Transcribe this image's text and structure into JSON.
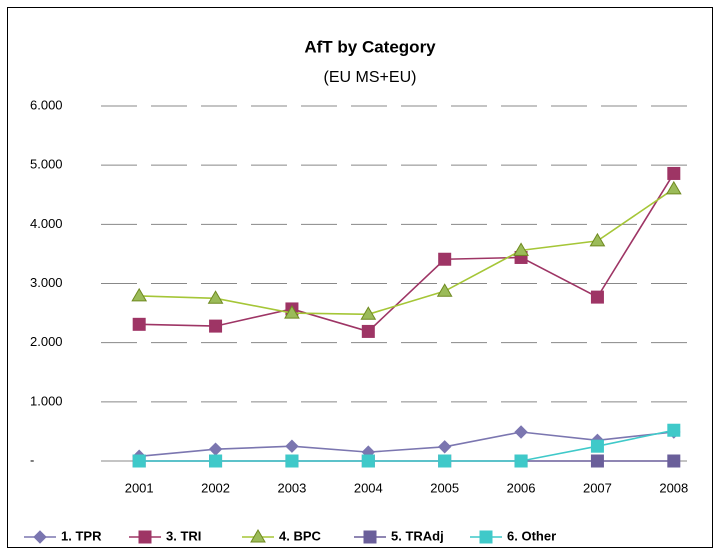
{
  "chart_data": {
    "type": "line",
    "title": "AfT by Category",
    "subtitle": "(EU MS+EU)",
    "categories": [
      "2001",
      "2002",
      "2003",
      "2004",
      "2005",
      "2006",
      "2007",
      "2008"
    ],
    "series": [
      {
        "name": "1. TPR",
        "color": "#7b76b0",
        "marker": "diamond",
        "values": [
          80,
          200,
          250,
          150,
          240,
          490,
          350,
          490
        ]
      },
      {
        "name": "3. TRI",
        "color": "#9e3565",
        "marker": "square",
        "values": [
          2310,
          2280,
          2570,
          2190,
          3410,
          3440,
          2770,
          4860
        ]
      },
      {
        "name": "4. BPC",
        "color": "#a5c637",
        "marker": "triangle",
        "values": [
          2790,
          2750,
          2500,
          2480,
          2870,
          3560,
          3720,
          4600
        ]
      },
      {
        "name": "5. TRAdj",
        "color": "#6a5f9a",
        "marker": "square",
        "values": [
          0,
          0,
          0,
          0,
          0,
          0,
          0,
          0
        ]
      },
      {
        "name": "6. Other",
        "color": "#3fc9c9",
        "marker": "square",
        "values": [
          0,
          0,
          0,
          0,
          0,
          0,
          250,
          520
        ]
      }
    ],
    "ylim": [
      0,
      6000
    ],
    "yticks": [
      {
        "value": 0,
        "label": "-"
      },
      {
        "value": 1000,
        "label": "1.000"
      },
      {
        "value": 2000,
        "label": "2.000"
      },
      {
        "value": 3000,
        "label": "3.000"
      },
      {
        "value": 4000,
        "label": "4.000"
      },
      {
        "value": 5000,
        "label": "5.000"
      },
      {
        "value": 6000,
        "label": "6.000"
      }
    ],
    "grid": true,
    "legend": "bottom"
  }
}
